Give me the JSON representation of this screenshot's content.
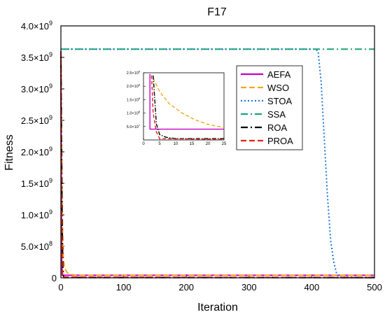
{
  "chart_data": {
    "type": "line",
    "title": "F17",
    "xlabel": "Iteration",
    "ylabel": "Fitness",
    "xlim": [
      0,
      500
    ],
    "ylim": [
      0,
      4000000000.0
    ],
    "x_ticks": [
      0,
      100,
      200,
      300,
      400,
      500
    ],
    "y_ticks": [
      {
        "value": 0,
        "label": "0"
      },
      {
        "value": 500000000.0,
        "label": "5.0×10",
        "exp": "8"
      },
      {
        "value": 1000000000.0,
        "label": "1.0×10",
        "exp": "9"
      },
      {
        "value": 1500000000.0,
        "label": "1.5×10",
        "exp": "9"
      },
      {
        "value": 2000000000.0,
        "label": "2.0×10",
        "exp": "9"
      },
      {
        "value": 2500000000.0,
        "label": "2.5×10",
        "exp": "9"
      },
      {
        "value": 3000000000.0,
        "label": "3.0×10",
        "exp": "9"
      },
      {
        "value": 3500000000.0,
        "label": "3.5×10",
        "exp": "9"
      },
      {
        "value": 4000000000.0,
        "label": "4.0×10",
        "exp": "9"
      }
    ],
    "grid": false,
    "legend_position": "top-right",
    "series": [
      {
        "name": "AEFA",
        "color": "#c800c8",
        "dash": "solid",
        "points": [
          [
            0,
            3600000000.0
          ],
          [
            1,
            400000000.0
          ],
          [
            2,
            40000000.0
          ],
          [
            500,
            40000000.0
          ]
        ]
      },
      {
        "name": "WSO",
        "color": "#f5a623",
        "dash": "dash",
        "points": [
          [
            0,
            3600000000.0
          ],
          [
            1,
            2300000000.0
          ],
          [
            2,
            1200000000.0
          ],
          [
            3,
            600000000.0
          ],
          [
            4,
            300000000.0
          ],
          [
            6,
            150000000.0
          ],
          [
            10,
            80000000.0
          ],
          [
            15,
            55000000.0
          ],
          [
            25,
            42000000.0
          ],
          [
            500,
            40000000.0
          ]
        ]
      },
      {
        "name": "STOA",
        "color": "#1f77d4",
        "dash": "dot",
        "points": [
          [
            0,
            3630000000.0
          ],
          [
            405,
            3630000000.0
          ],
          [
            410,
            3600000000.0
          ],
          [
            415,
            3100000000.0
          ],
          [
            420,
            2200000000.0
          ],
          [
            425,
            1300000000.0
          ],
          [
            430,
            600000000.0
          ],
          [
            435,
            250000000.0
          ],
          [
            440,
            50000000.0
          ],
          [
            445,
            10000000.0
          ],
          [
            500,
            5000000.0
          ]
        ]
      },
      {
        "name": "SSA",
        "color": "#1aa37a",
        "dash": "dashdot",
        "points": [
          [
            0,
            3630000000.0
          ],
          [
            500,
            3630000000.0
          ]
        ]
      },
      {
        "name": "ROA",
        "color": "#000000",
        "dash": "dashdot",
        "points": [
          [
            0,
            3600000000.0
          ],
          [
            1,
            2200000000.0
          ],
          [
            2,
            900000000.0
          ],
          [
            3,
            200000000.0
          ],
          [
            4,
            30000000.0
          ],
          [
            5,
            5000000.0
          ],
          [
            500,
            5000000.0
          ]
        ]
      },
      {
        "name": "PROA",
        "color": "#e0201b",
        "dash": "dash",
        "points": [
          [
            0,
            3600000000.0
          ],
          [
            1,
            1200000000.0
          ],
          [
            2,
            150000000.0
          ],
          [
            3,
            10000000.0
          ],
          [
            500,
            2000000.0
          ]
        ]
      }
    ],
    "inset": {
      "xlim": [
        0,
        25
      ],
      "ylim": [
        0,
        250000000.0
      ],
      "x_ticks": [
        0,
        5,
        10,
        15,
        20,
        25
      ],
      "y_ticks": [
        {
          "value": 50000000.0,
          "label": "5.0×10",
          "exp": "7"
        },
        {
          "value": 100000000.0,
          "label": "1.0×10",
          "exp": "8"
        },
        {
          "value": 150000000.0,
          "label": "1.5×10",
          "exp": "8"
        },
        {
          "value": 200000000.0,
          "label": "2.0×10",
          "exp": "8"
        },
        {
          "value": 250000000.0,
          "label": "2.5×10",
          "exp": "8"
        }
      ],
      "series": [
        {
          "name": "AEFA",
          "points": [
            [
              2,
              245000000.0
            ],
            [
              2,
              40000000.0
            ],
            [
              25,
              40000000.0
            ]
          ]
        },
        {
          "name": "WSO",
          "points": [
            [
              3,
              230000000.0
            ],
            [
              5,
              180000000.0
            ],
            [
              8,
              135000000.0
            ],
            [
              12,
              100000000.0
            ],
            [
              16,
              75000000.0
            ],
            [
              20,
              58000000.0
            ],
            [
              25,
              46000000.0
            ]
          ]
        },
        {
          "name": "ROA",
          "points": [
            [
              3,
              240000000.0
            ],
            [
              3.5,
              150000000.0
            ],
            [
              4,
              60000000.0
            ],
            [
              5,
              20000000.0
            ],
            [
              7,
              10000000.0
            ],
            [
              10,
              5000000.0
            ],
            [
              25,
              5000000.0
            ]
          ]
        },
        {
          "name": "PROA",
          "points": [
            [
              2.5,
              240000000.0
            ],
            [
              3,
              100000000.0
            ],
            [
              4,
              30000000.0
            ],
            [
              5,
              5000000.0
            ],
            [
              25,
              2000000.0
            ]
          ]
        }
      ]
    }
  }
}
